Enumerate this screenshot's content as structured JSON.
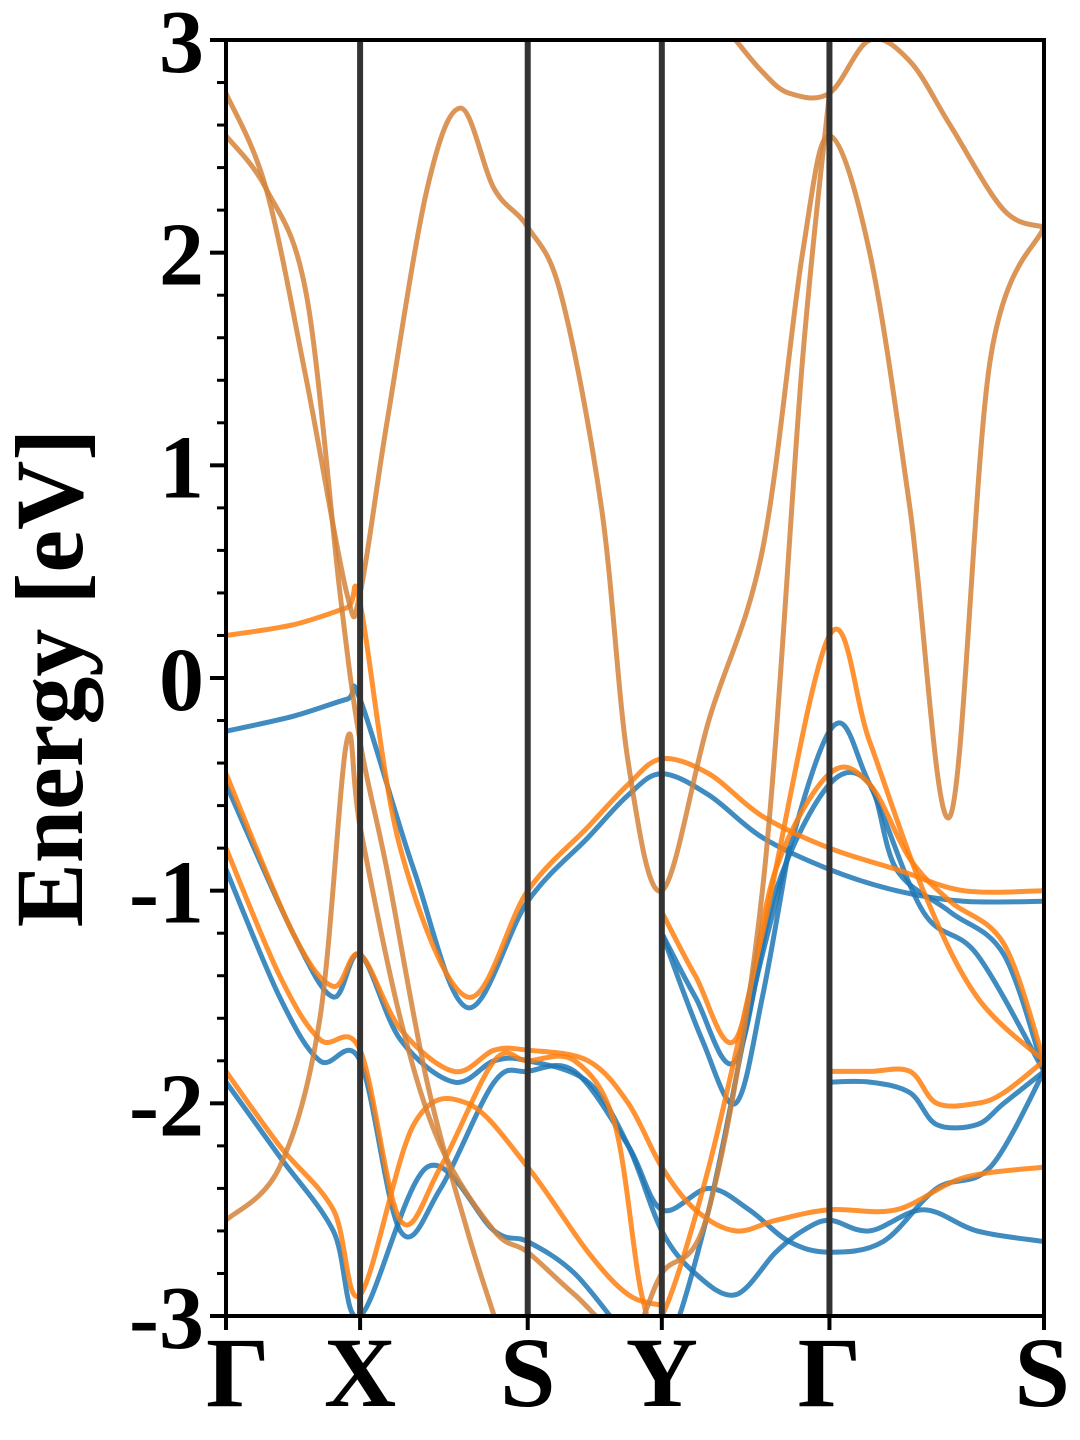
{
  "chart_data": {
    "type": "line",
    "title": "",
    "xlabel": "",
    "ylabel": "Energy [eV]",
    "ylim": [
      -3,
      3
    ],
    "xlim": [
      0,
      6.1
    ],
    "grid": false,
    "legend": "none",
    "y_ticks": [
      -3,
      -2,
      -1,
      0,
      1,
      2,
      3
    ],
    "y_tick_labels": [
      "-3",
      "-2",
      "-1",
      "0",
      "1",
      "2",
      "3"
    ],
    "y_minor_step": 0.2,
    "k_points": [
      {
        "label": "Γ",
        "x": 0.0
      },
      {
        "label": "X",
        "x": 1.0
      },
      {
        "label": "S",
        "x": 2.25
      },
      {
        "label": "Y",
        "x": 3.25
      },
      {
        "label": "Γ",
        "x": 4.5
      },
      {
        "label": "S",
        "x": 6.1
      }
    ],
    "colors": {
      "series_a": "#1f77b4",
      "series_b": "#ff7f0e",
      "kline": "#333333"
    },
    "series": [
      {
        "color": "#1f77b4",
        "bands": [
          {
            "x": [
              0,
              0.5,
              0.9,
              1.0,
              1.4,
              1.8,
              2.25,
              2.7,
              3.0,
              3.25,
              3.6,
              4.0,
              4.5,
              5.0,
              5.5,
              6.1
            ],
            "y": [
              -0.25,
              -0.18,
              -0.1,
              -0.1,
              -0.9,
              -1.55,
              -1.05,
              -0.75,
              -0.55,
              -0.45,
              -0.55,
              -0.75,
              -0.9,
              -1.0,
              -1.05,
              -1.05
            ]
          },
          {
            "x": [
              0,
              0.5,
              0.8,
              1.0,
              1.3,
              1.7,
              2.0,
              2.25,
              2.7,
              3.0,
              3.25,
              3.5,
              3.8,
              4.1,
              4.3,
              4.5,
              4.8,
              5.2,
              5.6,
              6.1
            ],
            "y": [
              -0.5,
              -1.2,
              -1.5,
              -1.3,
              -1.7,
              -1.9,
              -1.8,
              -1.8,
              -1.9,
              -2.2,
              -2.6,
              -2.8,
              -2.9,
              -2.7,
              -2.6,
              -2.55,
              -2.6,
              -2.5,
              -2.6,
              -2.65
            ]
          },
          {
            "x": [
              0,
              0.4,
              0.7,
              1.0,
              1.3,
              1.6,
              2.0,
              2.25,
              2.6,
              3.0,
              3.25,
              3.6,
              3.9,
              4.2,
              4.5,
              4.9,
              5.3,
              5.7,
              6.1
            ],
            "y": [
              -0.9,
              -1.5,
              -1.8,
              -1.8,
              -2.6,
              -2.4,
              -1.9,
              -1.85,
              -1.85,
              -2.2,
              -2.5,
              -2.4,
              -2.5,
              -2.65,
              -2.7,
              -2.65,
              -2.4,
              -2.3,
              -1.85
            ]
          },
          {
            "x": [
              0,
              0.4,
              0.8,
              1.0,
              1.5,
              2.0,
              2.25,
              2.6,
              3.0,
              3.25,
              3.6,
              4.0,
              4.5,
              4.8,
              5.2,
              5.6,
              6.1
            ],
            "y": [
              -1.9,
              -2.25,
              -2.6,
              -3.0,
              -2.3,
              -2.6,
              -2.65,
              -2.8,
              -3.1,
              -3.2,
              -2.5,
              -1.3,
              -0.25,
              -0.5,
              -1.1,
              -1.3,
              -1.85
            ]
          },
          {
            "x": [
              3.25,
              3.5,
              3.8,
              4.1,
              4.5,
              4.8,
              5.0,
              5.4,
              5.8,
              6.1
            ],
            "y": [
              -1.2,
              -1.5,
              -1.8,
              -1.0,
              -0.5,
              -0.5,
              -0.9,
              -1.1,
              -1.3,
              -1.85
            ]
          },
          {
            "x": [
              4.5,
              4.8,
              5.1,
              5.3,
              5.6,
              5.8,
              6.1
            ],
            "y": [
              -1.9,
              -1.9,
              -1.95,
              -2.1,
              -2.1,
              -2.0,
              -1.85
            ]
          },
          {
            "x": [
              3.25,
              3.55,
              3.8,
              4.0,
              4.2
            ],
            "y": [
              -1.2,
              -1.7,
              -2.0,
              -1.5,
              -0.8
            ]
          }
        ]
      },
      {
        "color": "#ff7f0e",
        "bands": [
          {
            "x": [
              0,
              0.5,
              0.9,
              1.0,
              1.3,
              1.8,
              2.25,
              2.7,
              3.0,
              3.25,
              3.6,
              4.0,
              4.5,
              5.0,
              5.5,
              6.1
            ],
            "y": [
              0.2,
              0.25,
              0.33,
              0.35,
              -0.8,
              -1.5,
              -1.0,
              -0.7,
              -0.5,
              -0.38,
              -0.45,
              -0.65,
              -0.8,
              -0.9,
              -1.0,
              -1.0
            ]
          },
          {
            "x": [
              0,
              0.5,
              0.8,
              1.0,
              1.3,
              1.7,
              2.0,
              2.25,
              2.7,
              3.0,
              3.25,
              3.5,
              3.8,
              4.1,
              4.5,
              5.0,
              5.5,
              6.1
            ],
            "y": [
              -0.45,
              -1.2,
              -1.45,
              -1.3,
              -1.65,
              -1.85,
              -1.75,
              -1.75,
              -1.8,
              -2.0,
              -2.3,
              -2.5,
              -2.6,
              -2.55,
              -2.5,
              -2.5,
              -2.35,
              -2.3
            ]
          },
          {
            "x": [
              0,
              0.4,
              0.7,
              1.0,
              1.3,
              1.6,
              2.0,
              2.25,
              2.6,
              2.9,
              3.1,
              3.25,
              3.6,
              4.0,
              4.5,
              4.8,
              5.2,
              5.6,
              6.1
            ],
            "y": [
              -0.8,
              -1.4,
              -1.7,
              -1.75,
              -2.55,
              -2.3,
              -1.8,
              -1.8,
              -1.8,
              -2.1,
              -2.9,
              -3.0,
              -2.3,
              -1.2,
              0.2,
              -0.3,
              -1.0,
              -1.5,
              -1.8
            ]
          },
          {
            "x": [
              3.25,
              3.5,
              3.8,
              4.1,
              4.5,
              4.8,
              5.1,
              5.4,
              5.8,
              6.1
            ],
            "y": [
              -1.1,
              -1.4,
              -1.7,
              -0.9,
              -0.45,
              -0.5,
              -0.85,
              -1.05,
              -1.25,
              -1.8
            ]
          },
          {
            "x": [
              4.5,
              4.8,
              5.1,
              5.3,
              5.6,
              5.8,
              6.1
            ],
            "y": [
              -1.85,
              -1.85,
              -1.85,
              -2.0,
              -2.0,
              -1.95,
              -1.8
            ]
          },
          {
            "x": [
              0,
              0.4,
              0.8,
              1.0,
              1.4,
              1.8,
              2.25,
              2.7,
              3.0,
              3.25
            ],
            "y": [
              -1.85,
              -2.2,
              -2.5,
              -2.9,
              -2.1,
              -2.0,
              -2.3,
              -2.7,
              -2.9,
              -2.95
            ]
          }
        ]
      },
      {
        "color": "#d4823a",
        "bands": [
          {
            "x": [
              0,
              0.3,
              0.6,
              0.9,
              1.0,
              1.2,
              1.5,
              1.75,
              2.0,
              2.25,
              2.5,
              2.8,
              3.0,
              3.25,
              3.6,
              4.0,
              4.3,
              4.5,
              4.8,
              5.1,
              5.4,
              5.7,
              6.1
            ],
            "y": [
              2.75,
              2.3,
              1.4,
              0.4,
              0.4,
              1.2,
              2.3,
              2.68,
              2.3,
              2.12,
              1.8,
              0.8,
              -0.4,
              -1.0,
              -0.2,
              0.6,
              2.0,
              2.55,
              2.0,
              0.8,
              -0.65,
              1.5,
              2.12
            ]
          },
          {
            "x": [
              0,
              0.3,
              0.6,
              0.85,
              1.0,
              1.2,
              1.5,
              1.8,
              2.0
            ],
            "y": [
              2.55,
              2.3,
              1.8,
              0.4,
              -0.3,
              -0.9,
              -1.9,
              -2.6,
              -3.0
            ]
          },
          {
            "x": [
              0,
              0.4,
              0.7,
              0.9,
              1.0,
              1.3,
              1.6,
              2.0,
              2.25,
              2.6,
              3.0,
              3.25,
              3.6,
              4.0,
              4.3,
              4.5
            ],
            "y": [
              -2.55,
              -2.3,
              -1.6,
              -0.3,
              -0.7,
              -1.6,
              -2.2,
              -2.6,
              -2.7,
              -2.9,
              -3.1,
              -2.8,
              -2.5,
              -1.0,
              1.5,
              2.75
            ]
          },
          {
            "x": [
              3.8,
              4.0,
              4.2,
              4.5,
              4.8,
              5.1,
              5.4,
              5.8,
              6.1
            ],
            "y": [
              3.0,
              2.85,
              2.75,
              2.75,
              3.0,
              2.9,
              2.6,
              2.2,
              2.12
            ]
          }
        ]
      }
    ]
  }
}
